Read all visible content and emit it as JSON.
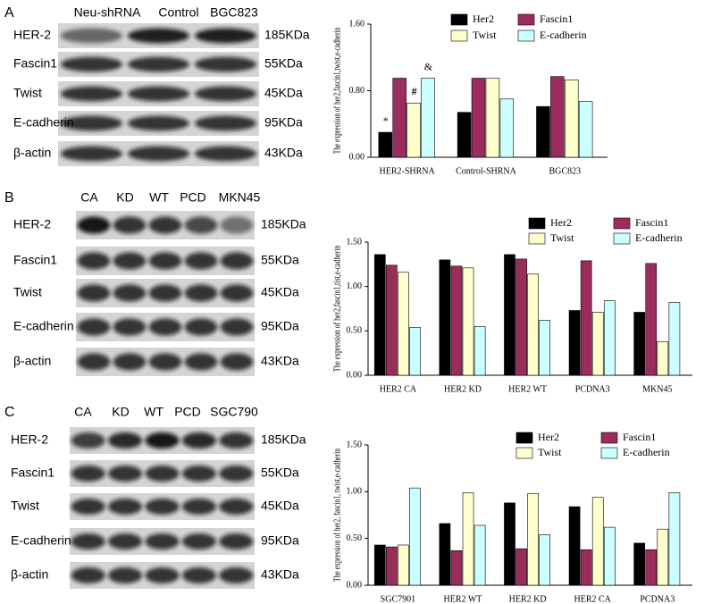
{
  "blots": [
    {
      "label": "A",
      "lanes": [
        "Neu-shRNA",
        "Control",
        "BGC823"
      ],
      "rows": [
        {
          "protein": "HER-2",
          "size": "185KDa"
        },
        {
          "protein": "Fascin1",
          "size": "55KDa"
        },
        {
          "protein": "Twist",
          "size": "45KDa"
        },
        {
          "protein": "E-cadherin",
          "size": "95KDa"
        },
        {
          "protein": "β-actin",
          "size": "43KDa"
        }
      ]
    },
    {
      "label": "B",
      "lanes": [
        "CA",
        "KD",
        "WT",
        "PCD",
        "MKN45"
      ],
      "rows": [
        {
          "protein": "HER-2",
          "size": "185KDa"
        },
        {
          "protein": "Fascin1",
          "size": "55KDa"
        },
        {
          "protein": "Twist",
          "size": "45KDa"
        },
        {
          "protein": "E-cadherin",
          "size": "95KDa"
        },
        {
          "protein": "β-actin",
          "size": "43KDa"
        }
      ]
    },
    {
      "label": "C",
      "lanes": [
        "CA",
        "KD",
        "WT",
        "PCD",
        "SGC790"
      ],
      "rows": [
        {
          "protein": "HER-2",
          "size": "185KDa"
        },
        {
          "protein": "Fascin1",
          "size": "55KDa"
        },
        {
          "protein": "Twist",
          "size": "45KDa"
        },
        {
          "protein": "E-cadherin",
          "size": "95KDa"
        },
        {
          "protein": "β-actin",
          "size": "43KDa"
        }
      ]
    }
  ],
  "chart_data": [
    {
      "type": "bar",
      "y_label": "The expression of her2,fascin1,twist,e-cadherin",
      "categories": [
        "HER2-SHRNA",
        "Control-SHRNA",
        "BGC823"
      ],
      "series": [
        {
          "name": "Her2",
          "color": "#000000",
          "values": [
            0.3,
            0.54,
            0.61
          ]
        },
        {
          "name": "Fascin1",
          "color": "#9b2d5c",
          "values": [
            0.95,
            0.95,
            0.97
          ]
        },
        {
          "name": "Twist",
          "color": "#ffffcc",
          "values": [
            0.65,
            0.95,
            0.93
          ]
        },
        {
          "name": "E-cadherin",
          "color": "#ccffff",
          "values": [
            0.95,
            0.7,
            0.67
          ]
        }
      ],
      "annotations": [
        "*",
        "#",
        "&"
      ],
      "ylim": [
        0,
        1.6
      ],
      "yticks": [
        {
          "value": 0,
          "label": "0.00"
        },
        {
          "value": 0.8,
          "label": "0.80"
        },
        {
          "value": 1.6,
          "label": "1.60"
        }
      ]
    },
    {
      "type": "bar",
      "y_label": "The expression of her2,fascin1,tist,e-cadherin",
      "categories": [
        "HER2 CA",
        "HER2 KD",
        "HER2 WT",
        "PCDNA3",
        "MKN45"
      ],
      "series": [
        {
          "name": "Her2",
          "color": "#000000",
          "values": [
            1.36,
            1.3,
            1.36,
            0.73,
            0.71
          ]
        },
        {
          "name": "Fascin1",
          "color": "#9b2d5c",
          "values": [
            1.24,
            1.23,
            1.31,
            1.29,
            1.26
          ]
        },
        {
          "name": "Twist",
          "color": "#ffffcc",
          "values": [
            1.16,
            1.21,
            1.14,
            0.71,
            0.38
          ]
        },
        {
          "name": "E-cadherin",
          "color": "#ccffff",
          "values": [
            0.54,
            0.55,
            0.62,
            0.84,
            0.82
          ]
        }
      ],
      "ylim": [
        0,
        1.5
      ],
      "yticks": [
        {
          "value": 0,
          "label": "0.00"
        },
        {
          "value": 0.5,
          "label": "0.50"
        },
        {
          "value": 1,
          "label": "1.00"
        },
        {
          "value": 1.5,
          "label": "1.50"
        }
      ]
    },
    {
      "type": "bar",
      "y_label": "The expression of her2, fascin1, twist,e-cadherin",
      "categories": [
        "SGC7901",
        "HER2 WT",
        "HER2 KD",
        "HER2 CA",
        "PCDNA3"
      ],
      "series": [
        {
          "name": "Her2",
          "color": "#000000",
          "values": [
            0.43,
            0.66,
            0.88,
            0.84,
            0.45
          ]
        },
        {
          "name": "Fascin1",
          "color": "#9b2d5c",
          "values": [
            0.41,
            0.37,
            0.39,
            0.38,
            0.38
          ]
        },
        {
          "name": "Twist",
          "color": "#ffffcc",
          "values": [
            0.43,
            0.99,
            0.98,
            0.94,
            0.6
          ]
        },
        {
          "name": "E-cadherin",
          "color": "#ccffff",
          "values": [
            1.04,
            0.64,
            0.54,
            0.62,
            0.99
          ]
        }
      ],
      "ylim": [
        0,
        1.5
      ],
      "yticks": [
        {
          "value": 0,
          "label": "0.00"
        },
        {
          "value": 0.5,
          "label": "0.50"
        },
        {
          "value": 1,
          "label": "1.00"
        },
        {
          "value": 1.5,
          "label": "1.50"
        }
      ]
    }
  ]
}
